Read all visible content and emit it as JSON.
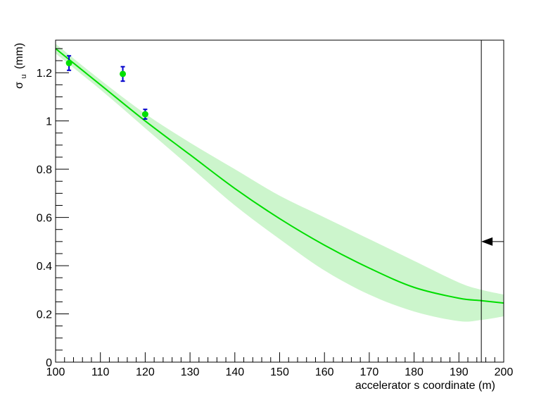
{
  "chart_data": {
    "type": "scatter",
    "xlabel": "accelerator s coordinate (m)",
    "ylabel": {
      "symbol": "σ",
      "subscript": "u",
      "unit": "(mm)"
    },
    "xlim": [
      100,
      200
    ],
    "ylim": [
      0,
      1.335
    ],
    "xticks": [
      100,
      110,
      120,
      130,
      140,
      150,
      160,
      170,
      180,
      190,
      200
    ],
    "xtick_labels": [
      "100",
      "110",
      "120",
      "130",
      "140",
      "150",
      "160",
      "170",
      "180",
      "190",
      "200"
    ],
    "yticks": [
      0,
      0.2,
      0.4,
      0.6,
      0.8,
      1,
      1.2
    ],
    "ytick_labels": [
      "0",
      "0.2",
      "0.4",
      "0.6",
      "0.8",
      "1",
      "1.2"
    ],
    "grid": false,
    "points": {
      "x": [
        103,
        115,
        120
      ],
      "y": [
        1.24,
        1.195,
        1.028
      ],
      "err": [
        0.03,
        0.03,
        0.02
      ],
      "marker_color": "#00e000",
      "error_color": "#0000cc"
    },
    "fit_curve": {
      "x": [
        100,
        110,
        120,
        130,
        140,
        150,
        160,
        170,
        180,
        190,
        195,
        200
      ],
      "y": [
        1.3,
        1.15,
        1.0,
        0.86,
        0.72,
        0.595,
        0.485,
        0.39,
        0.31,
        0.265,
        0.255,
        0.245
      ],
      "color": "#00dd00"
    },
    "confidence_band": {
      "x": [
        100,
        110,
        120,
        130,
        140,
        150,
        160,
        170,
        180,
        190,
        195,
        200
      ],
      "upper": [
        1.32,
        1.17,
        1.03,
        0.91,
        0.8,
        0.69,
        0.6,
        0.51,
        0.42,
        0.33,
        0.3,
        0.28
      ],
      "lower": [
        1.28,
        1.13,
        0.97,
        0.81,
        0.65,
        0.51,
        0.38,
        0.28,
        0.21,
        0.17,
        0.175,
        0.19
      ],
      "color": "#ccf5cc"
    },
    "vertical_line": {
      "x": 195,
      "color": "#000000"
    },
    "arrow": {
      "x_tail": 200,
      "x_head": 195,
      "y": 0.5,
      "color": "#000000"
    }
  }
}
